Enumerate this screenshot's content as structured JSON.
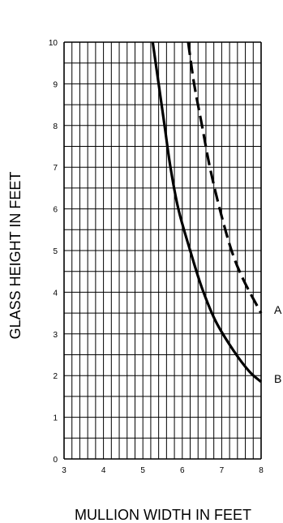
{
  "chart_data": {
    "type": "line",
    "title": "",
    "xlabel": "MULLION WIDTH IN FEET",
    "ylabel": "GLASS HEIGHT IN FEET",
    "xlim": [
      3,
      8
    ],
    "ylim": [
      0,
      10
    ],
    "x_ticks": [
      "3",
      "4",
      "5",
      "6",
      "7",
      "8"
    ],
    "y_ticks": [
      "0",
      "1",
      "2",
      "3",
      "4",
      "5",
      "6",
      "7",
      "8",
      "9",
      "10"
    ],
    "grid": true,
    "series": [
      {
        "name": "A",
        "style": "dashed",
        "color": "#000000",
        "points": [
          [
            6.15,
            10.0
          ],
          [
            6.3,
            9.0
          ],
          [
            6.5,
            8.0
          ],
          [
            6.7,
            7.0
          ],
          [
            6.95,
            6.0
          ],
          [
            7.25,
            5.0
          ],
          [
            7.55,
            4.3
          ],
          [
            8.0,
            3.5
          ]
        ]
      },
      {
        "name": "B",
        "style": "solid",
        "color": "#000000",
        "points": [
          [
            5.25,
            10.0
          ],
          [
            5.4,
            9.0
          ],
          [
            5.55,
            8.0
          ],
          [
            5.7,
            7.0
          ],
          [
            5.9,
            6.0
          ],
          [
            6.2,
            5.0
          ],
          [
            6.5,
            4.1
          ],
          [
            6.85,
            3.3
          ],
          [
            7.3,
            2.6
          ],
          [
            7.7,
            2.1
          ],
          [
            8.0,
            1.85
          ]
        ]
      }
    ]
  }
}
